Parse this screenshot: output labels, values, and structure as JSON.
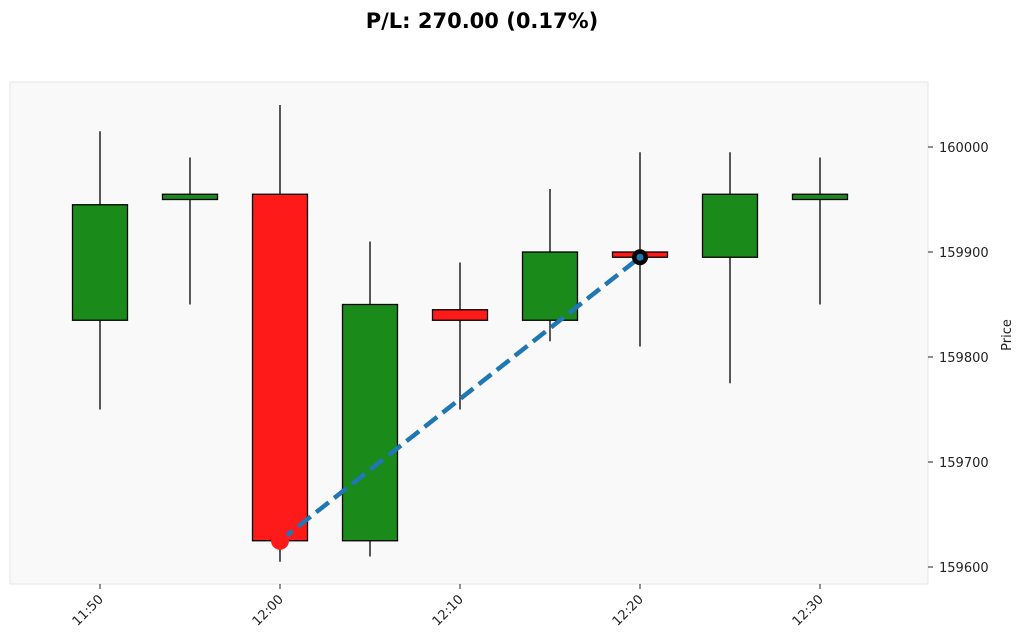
{
  "chart_data": {
    "type": "candlestick",
    "title": "P/L: 270.00 (0.17%)",
    "ylabel": "Price",
    "xlabel": "",
    "ylim": [
      159590,
      160065
    ],
    "yticks": [
      159600,
      159700,
      159800,
      159900,
      160000
    ],
    "xticks": [
      "11:50",
      "12:00",
      "12:10",
      "12:20",
      "12:30"
    ],
    "xrange_minutes": [
      "11:45",
      "12:36"
    ],
    "grid": false,
    "colors": {
      "up": "#1a8a1a",
      "down": "#ff1a1a",
      "trade_line": "#1f77b4",
      "plot_bg": "#f9f9f9"
    },
    "candles": [
      {
        "time": "11:50",
        "open": 159835,
        "high": 160015,
        "low": 159750,
        "close": 159945
      },
      {
        "time": "11:55",
        "open": 159950,
        "high": 159990,
        "low": 159850,
        "close": 159955
      },
      {
        "time": "12:00",
        "open": 159955,
        "high": 160040,
        "low": 159605,
        "close": 159625
      },
      {
        "time": "12:05",
        "open": 159625,
        "high": 159910,
        "low": 159610,
        "close": 159850
      },
      {
        "time": "12:10",
        "open": 159845,
        "high": 159890,
        "low": 159750,
        "close": 159835
      },
      {
        "time": "12:15",
        "open": 159835,
        "high": 159960,
        "low": 159815,
        "close": 159900
      },
      {
        "time": "12:20",
        "open": 159900,
        "high": 159995,
        "low": 159810,
        "close": 159895
      },
      {
        "time": "12:25",
        "open": 159895,
        "high": 159995,
        "low": 159775,
        "close": 159955
      },
      {
        "time": "12:30",
        "open": 159950,
        "high": 159990,
        "low": 159850,
        "close": 159955
      }
    ],
    "trade": {
      "entry": {
        "time": "12:00",
        "price": 159625,
        "marker_color": "#ff1a1a"
      },
      "exit": {
        "time": "12:20",
        "price": 159895,
        "marker_color": "#000000"
      }
    }
  }
}
